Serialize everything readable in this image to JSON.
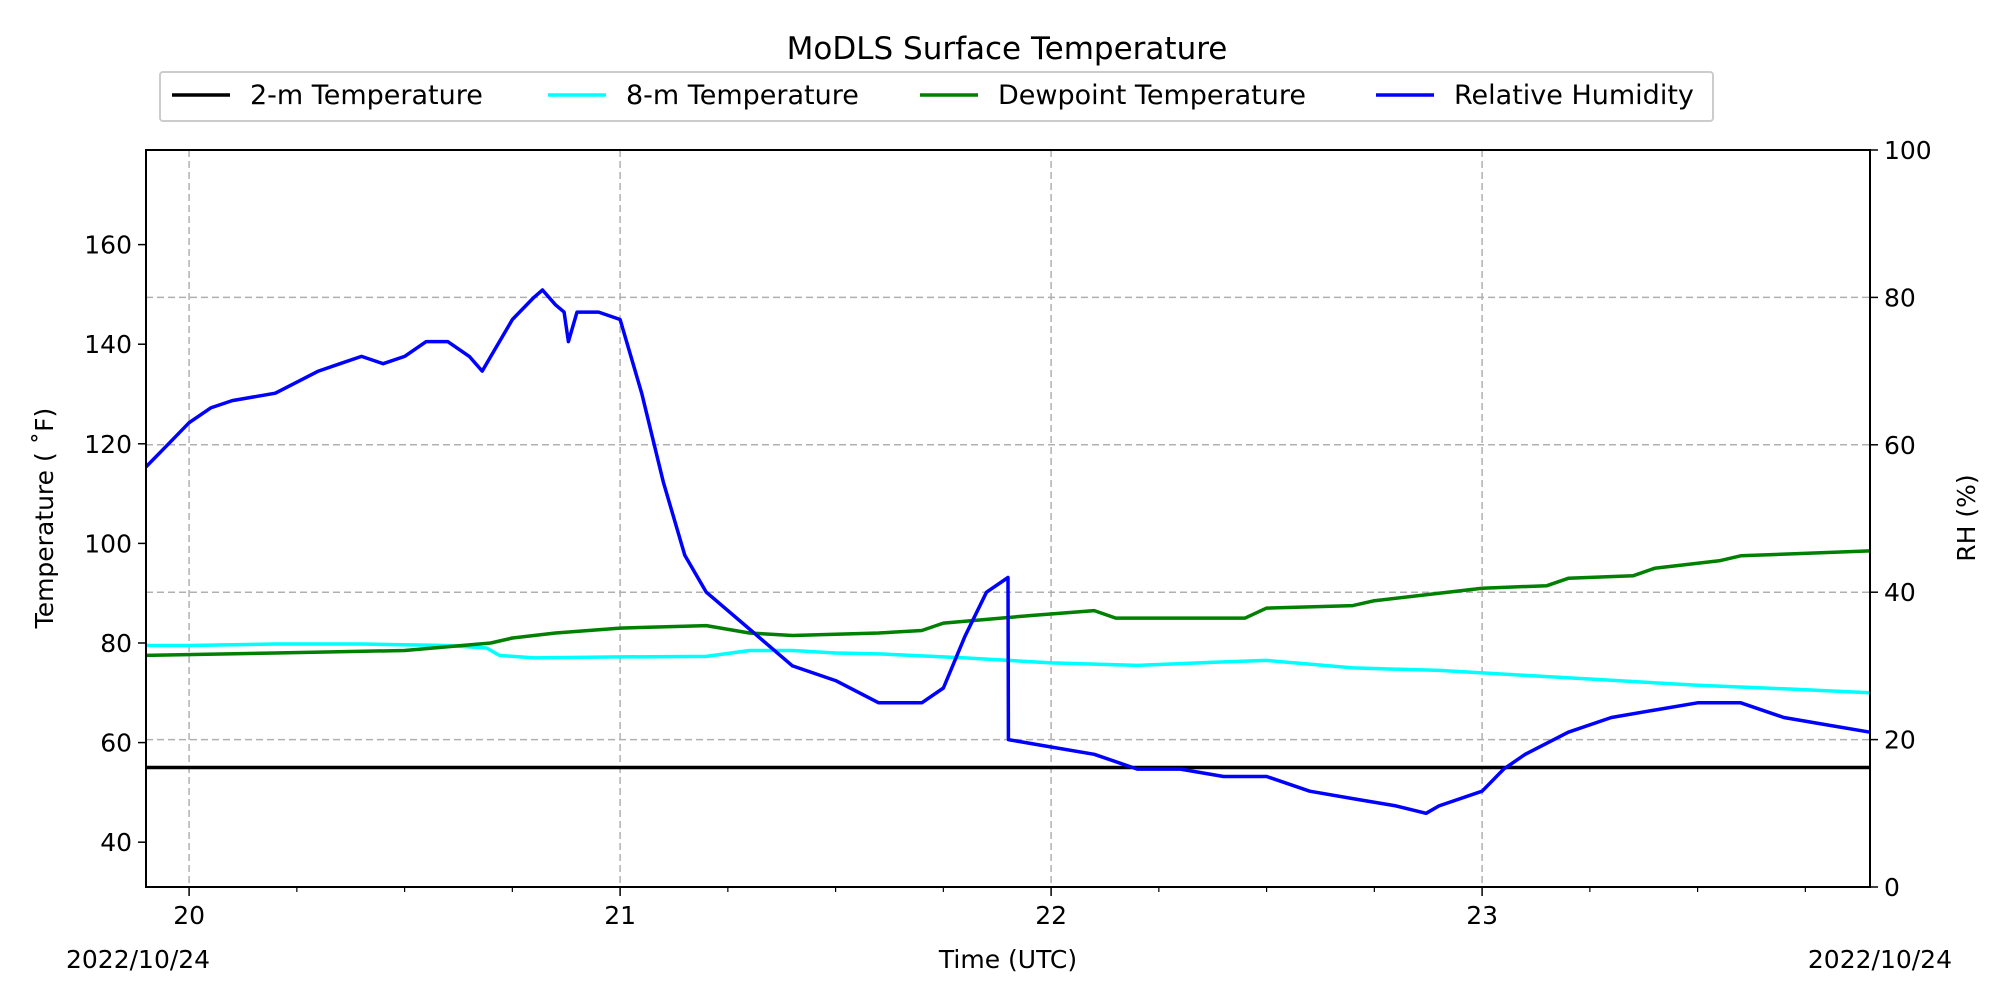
{
  "chart_data": {
    "type": "line",
    "title": "MoDLS Surface Temperature",
    "xlabel": "Time (UTC)",
    "ylabel_left": "Temperature ( ˚F)",
    "ylabel_right": "RH (%)",
    "date_left": "2022/10/24",
    "date_right": "2022/10/24",
    "x_unit": "day of month (UTC)",
    "xlim": [
      19.9,
      23.9
    ],
    "ylim_left": [
      31,
      179
    ],
    "ylim_right": [
      0,
      100
    ],
    "x_major_ticks": [
      20,
      21,
      22,
      23
    ],
    "x_tick_labels": [
      "20",
      "21",
      "22",
      "23"
    ],
    "y_left_ticks": [
      40,
      60,
      80,
      100,
      120,
      140,
      160
    ],
    "y_left_tick_labels": [
      "40",
      "60",
      "80",
      "100",
      "120",
      "140",
      "160"
    ],
    "y_right_ticks": [
      0,
      20,
      40,
      60,
      80,
      100
    ],
    "y_right_tick_labels": [
      "0",
      "20",
      "40",
      "60",
      "80",
      "100"
    ],
    "grid": true,
    "legend_position": "top-center",
    "legend": [
      "2-m Temperature",
      "8-m Temperature",
      "Dewpoint Temperature",
      "Relative Humidity"
    ],
    "series": [
      {
        "name": "2-m Temperature",
        "axis": "left",
        "color": "#000000",
        "x": [
          19.9,
          20.5,
          21.0,
          21.5,
          22.0,
          22.5,
          23.0,
          23.5,
          23.9
        ],
        "values": [
          55,
          55,
          55,
          55,
          55,
          55,
          55,
          55,
          55
        ]
      },
      {
        "name": "8-m Temperature",
        "axis": "left",
        "color": "#00ffff",
        "x": [
          19.9,
          20.0,
          20.2,
          20.4,
          20.6,
          20.69,
          20.72,
          20.8,
          21.0,
          21.2,
          21.3,
          21.4,
          21.5,
          21.6,
          21.8,
          22.0,
          22.2,
          22.4,
          22.5,
          22.7,
          22.9,
          23.1,
          23.3,
          23.5,
          23.7,
          23.9
        ],
        "values": [
          79.5,
          79.5,
          79.8,
          79.8,
          79.5,
          79.0,
          77.5,
          77.0,
          77.2,
          77.3,
          78.5,
          78.5,
          78.0,
          77.8,
          77.0,
          76.0,
          75.5,
          76.2,
          76.5,
          75.0,
          74.5,
          73.5,
          72.5,
          71.5,
          70.8,
          70.0
        ]
      },
      {
        "name": "Dewpoint Temperature",
        "axis": "left",
        "color": "#008000",
        "x": [
          19.9,
          20.2,
          20.5,
          20.7,
          20.75,
          20.85,
          21.0,
          21.2,
          21.3,
          21.4,
          21.6,
          21.7,
          21.75,
          21.95,
          22.1,
          22.15,
          22.45,
          22.5,
          22.7,
          22.75,
          22.85,
          22.95,
          23.0,
          23.15,
          23.2,
          23.35,
          23.4,
          23.55,
          23.6,
          23.9
        ],
        "values": [
          77.5,
          78.0,
          78.5,
          80.0,
          81.0,
          82.0,
          83.0,
          83.5,
          82.0,
          81.5,
          82.0,
          82.5,
          84.0,
          85.5,
          86.5,
          85.0,
          85.0,
          87.0,
          87.5,
          88.5,
          89.5,
          90.5,
          91.0,
          91.5,
          93.0,
          93.5,
          95.0,
          96.5,
          97.5,
          98.5
        ]
      },
      {
        "name": "Relative Humidity",
        "axis": "right",
        "color": "#0000ff",
        "x": [
          19.9,
          19.95,
          20.0,
          20.05,
          20.1,
          20.2,
          20.3,
          20.35,
          20.4,
          20.45,
          20.5,
          20.55,
          20.6,
          20.65,
          20.68,
          20.7,
          20.75,
          20.8,
          20.82,
          20.85,
          20.87,
          20.88,
          20.9,
          20.95,
          21.0,
          21.05,
          21.1,
          21.15,
          21.2,
          21.3,
          21.4,
          21.5,
          21.6,
          21.7,
          21.75,
          21.8,
          21.85,
          21.9,
          21.901,
          22.0,
          22.1,
          22.2,
          22.3,
          22.4,
          22.5,
          22.6,
          22.7,
          22.8,
          22.87,
          22.9,
          23.0,
          23.05,
          23.1,
          23.2,
          23.3,
          23.4,
          23.5,
          23.6,
          23.7,
          23.8,
          23.9
        ],
        "values": [
          57,
          60,
          63,
          65,
          66,
          67,
          70,
          71,
          72,
          71,
          72,
          74,
          74,
          72,
          70,
          72,
          77,
          80,
          81,
          79,
          78,
          74,
          78,
          78,
          77,
          67,
          55,
          45,
          40,
          35,
          30,
          28,
          25,
          25,
          27,
          34,
          40,
          42,
          20,
          19,
          18,
          16,
          16,
          15,
          15,
          13,
          12,
          11,
          10,
          11,
          13,
          16,
          18,
          21,
          23,
          24,
          25,
          25,
          23,
          22,
          21
        ]
      }
    ]
  }
}
